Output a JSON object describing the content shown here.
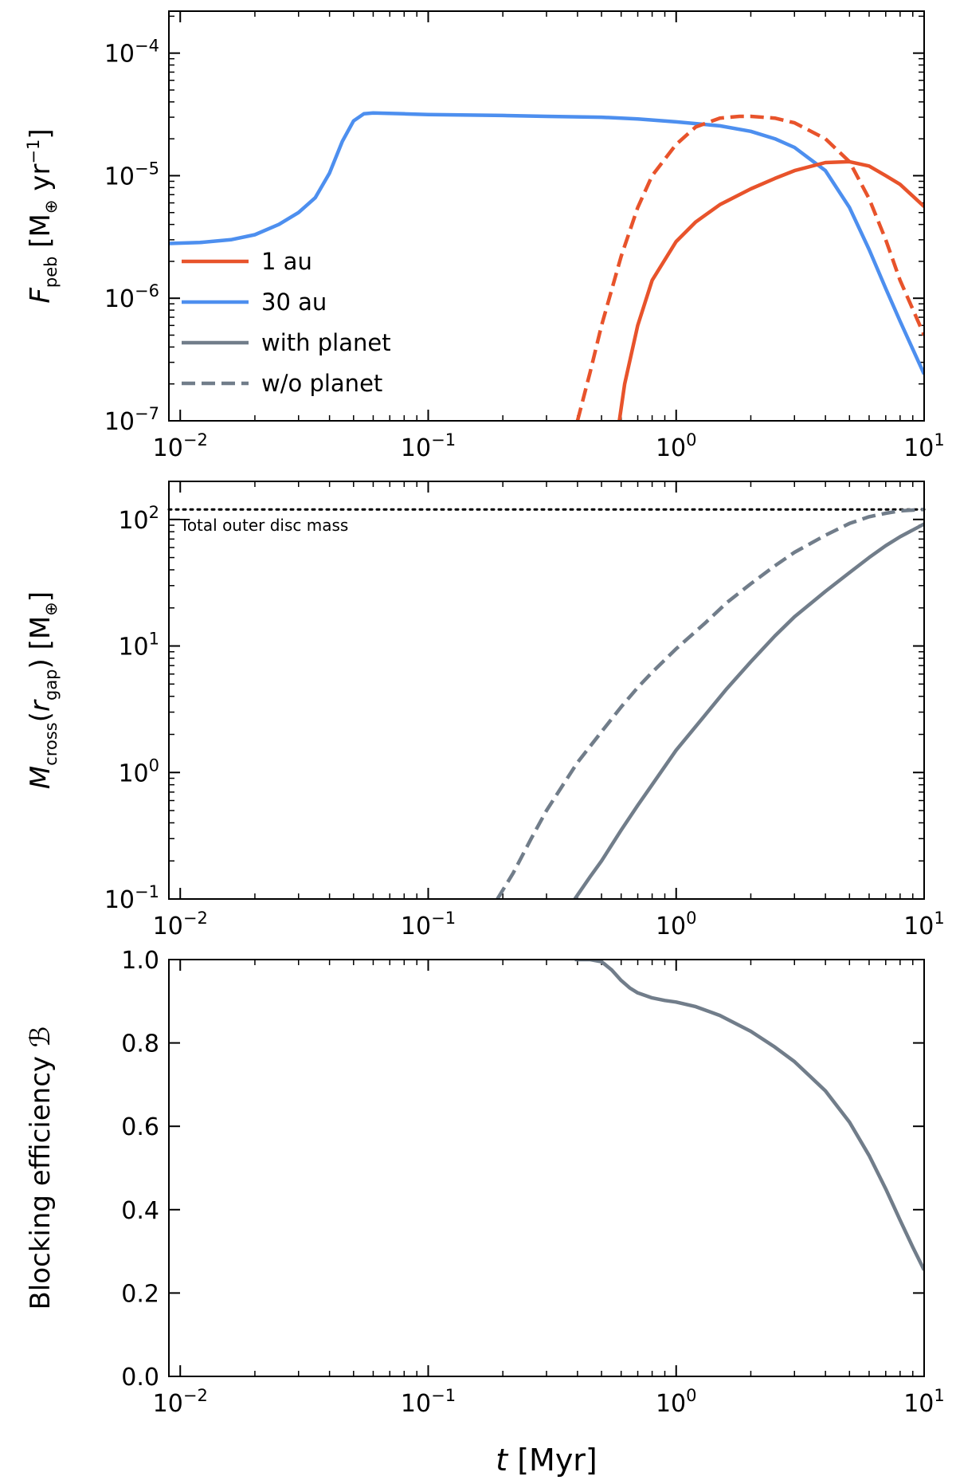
{
  "chart_data": [
    {
      "type": "line",
      "panel": "top",
      "ylabel": {
        "symbol": "F",
        "sub": "peb",
        "unit_open": " [M",
        "unit_sub": "⊕",
        "unit_mid": " yr",
        "unit_sup": "−1",
        "unit_close": "]"
      },
      "xscale": "log",
      "yscale": "log",
      "xlim": [
        0.009,
        10
      ],
      "ylim": [
        1e-07,
        0.00022
      ],
      "x_ticks": [
        {
          "value": 0.01,
          "base": "10",
          "exp": "−2"
        },
        {
          "value": 0.1,
          "base": "10",
          "exp": "−1"
        },
        {
          "value": 1,
          "base": "10",
          "exp": "0"
        },
        {
          "value": 10,
          "base": "10",
          "exp": "1"
        }
      ],
      "y_ticks": [
        {
          "value": 1e-07,
          "base": "10",
          "exp": "−7"
        },
        {
          "value": 1e-06,
          "base": "10",
          "exp": "−6"
        },
        {
          "value": 1e-05,
          "base": "10",
          "exp": "−5"
        },
        {
          "value": 0.0001,
          "base": "10",
          "exp": "−4"
        }
      ],
      "legend": {
        "position": "lower-left",
        "entries": [
          {
            "label": "1 au",
            "color": "#e8532b",
            "style": "solid"
          },
          {
            "label": "30 au",
            "color": "#4d8fef",
            "style": "solid"
          },
          {
            "label": "with planet",
            "color": "#717d8a",
            "style": "solid"
          },
          {
            "label": "w/o planet",
            "color": "#717d8a",
            "style": "dashed"
          }
        ]
      },
      "series": [
        {
          "name": "30 au",
          "color": "#4d8fef",
          "style": "solid",
          "x": [
            0.009,
            0.012,
            0.016,
            0.02,
            0.025,
            0.03,
            0.035,
            0.04,
            0.045,
            0.05,
            0.055,
            0.06,
            0.08,
            0.1,
            0.2,
            0.3,
            0.5,
            0.7,
            1.0,
            1.5,
            2.0,
            2.5,
            3.0,
            4.0,
            5.0,
            6.0,
            7.0,
            8.0,
            10.0
          ],
          "y": [
            2.8e-06,
            2.85e-06,
            3e-06,
            3.3e-06,
            4e-06,
            5e-06,
            6.6e-06,
            1.05e-05,
            1.9e-05,
            2.8e-05,
            3.2e-05,
            3.25e-05,
            3.2e-05,
            3.15e-05,
            3.1e-05,
            3.05e-05,
            3e-05,
            2.9e-05,
            2.75e-05,
            2.55e-05,
            2.3e-05,
            2e-05,
            1.7e-05,
            1.1e-05,
            5.5e-06,
            2.5e-06,
            1.2e-06,
            6.5e-07,
            2.4e-07
          ]
        },
        {
          "name": "1 au",
          "color": "#e8532b",
          "style": "dashed",
          "x": [
            0.4,
            0.45,
            0.5,
            0.6,
            0.7,
            0.8,
            1.0,
            1.2,
            1.5,
            1.8,
            2.0,
            2.5,
            3.0,
            4.0,
            5.0,
            6.0,
            7.0,
            8.0,
            10.0
          ],
          "y": [
            1e-07,
            2.5e-07,
            6e-07,
            2.2e-06,
            5.5e-06,
            1e-05,
            1.8e-05,
            2.5e-05,
            2.95e-05,
            3.05e-05,
            3.05e-05,
            2.95e-05,
            2.7e-05,
            2e-05,
            1.3e-05,
            6.5e-06,
            3e-06,
            1.4e-06,
            5e-07
          ]
        },
        {
          "name": "1 au",
          "color": "#e8532b",
          "style": "solid",
          "x": [
            0.59,
            0.62,
            0.7,
            0.8,
            1.0,
            1.2,
            1.5,
            2.0,
            2.5,
            3.0,
            4.0,
            5.0,
            6.0,
            7.0,
            8.0,
            10.0
          ],
          "y": [
            1e-07,
            2e-07,
            6e-07,
            1.4e-06,
            2.9e-06,
            4.2e-06,
            5.8e-06,
            7.8e-06,
            9.5e-06,
            1.1e-05,
            1.28e-05,
            1.3e-05,
            1.2e-05,
            1e-05,
            8.5e-06,
            5.6e-06
          ]
        }
      ]
    },
    {
      "type": "line",
      "panel": "middle",
      "ylabel": {
        "symbol": "M",
        "sub": "cross",
        "open": "(",
        "arg": "r",
        "arg_sub": "gap",
        "close": ")",
        "unit_open": " [M",
        "unit_sub": "⊕",
        "unit_close": "]"
      },
      "xscale": "log",
      "yscale": "log",
      "xlim": [
        0.009,
        10
      ],
      "ylim": [
        0.1,
        200
      ],
      "x_ticks": [
        {
          "value": 0.01,
          "base": "10",
          "exp": "−2"
        },
        {
          "value": 0.1,
          "base": "10",
          "exp": "−1"
        },
        {
          "value": 1,
          "base": "10",
          "exp": "0"
        },
        {
          "value": 10,
          "base": "10",
          "exp": "1"
        }
      ],
      "y_ticks": [
        {
          "value": 0.1,
          "base": "10",
          "exp": "−1"
        },
        {
          "value": 1,
          "base": "10",
          "exp": "0"
        },
        {
          "value": 10,
          "base": "10",
          "exp": "1"
        },
        {
          "value": 100,
          "base": "10",
          "exp": "2"
        }
      ],
      "reference_line": {
        "y": 120,
        "label": "Total outer disc mass",
        "style": "dotted",
        "color": "#000000"
      },
      "series": [
        {
          "name": "w/o planet",
          "color": "#717d8a",
          "style": "dashed",
          "x": [
            0.19,
            0.22,
            0.26,
            0.3,
            0.35,
            0.4,
            0.5,
            0.6,
            0.7,
            0.8,
            1.0,
            1.3,
            1.6,
            2.0,
            2.5,
            3.0,
            4.0,
            5.0,
            6.0,
            7.0,
            8.0,
            10.0
          ],
          "y": [
            0.1,
            0.16,
            0.3,
            0.5,
            0.8,
            1.2,
            2.1,
            3.3,
            4.7,
            6.2,
            9.5,
            15,
            22,
            31,
            43,
            55,
            75,
            93,
            105,
            112,
            117,
            120
          ]
        },
        {
          "name": "with planet",
          "color": "#717d8a",
          "style": "solid",
          "x": [
            0.39,
            0.45,
            0.5,
            0.6,
            0.7,
            0.8,
            1.0,
            1.3,
            1.6,
            2.0,
            2.5,
            3.0,
            4.0,
            5.0,
            6.0,
            7.0,
            8.0,
            10.0
          ],
          "y": [
            0.1,
            0.15,
            0.2,
            0.35,
            0.55,
            0.8,
            1.5,
            2.8,
            4.6,
            7.5,
            12,
            17,
            27,
            38,
            50,
            62,
            73,
            92
          ]
        }
      ]
    },
    {
      "type": "line",
      "panel": "bottom",
      "ylabel": "Blocking efficiency ℬ",
      "xlabel": {
        "symbol": "t",
        "unit": " [Myr]"
      },
      "xscale": "log",
      "yscale": "linear",
      "xlim": [
        0.009,
        10
      ],
      "ylim": [
        0.0,
        1.0
      ],
      "x_ticks": [
        {
          "value": 0.01,
          "base": "10",
          "exp": "−2"
        },
        {
          "value": 0.1,
          "base": "10",
          "exp": "−1"
        },
        {
          "value": 1,
          "base": "10",
          "exp": "0"
        },
        {
          "value": 10,
          "base": "10",
          "exp": "1"
        }
      ],
      "y_ticks": [
        {
          "value": 0.0,
          "label": "0.0"
        },
        {
          "value": 0.2,
          "label": "0.2"
        },
        {
          "value": 0.4,
          "label": "0.4"
        },
        {
          "value": 0.6,
          "label": "0.6"
        },
        {
          "value": 0.8,
          "label": "0.8"
        },
        {
          "value": 1.0,
          "label": "1.0"
        }
      ],
      "series": [
        {
          "name": "with planet",
          "color": "#717d8a",
          "style": "solid",
          "x": [
            0.39,
            0.45,
            0.5,
            0.55,
            0.6,
            0.65,
            0.7,
            0.8,
            0.9,
            1.0,
            1.2,
            1.5,
            2.0,
            2.5,
            3.0,
            4.0,
            5.0,
            6.0,
            7.0,
            8.0,
            9.0,
            10.0
          ],
          "y": [
            1.0,
            1.0,
            0.995,
            0.975,
            0.95,
            0.932,
            0.92,
            0.908,
            0.902,
            0.898,
            0.887,
            0.866,
            0.828,
            0.79,
            0.755,
            0.685,
            0.61,
            0.53,
            0.45,
            0.375,
            0.31,
            0.255
          ]
        }
      ]
    }
  ]
}
